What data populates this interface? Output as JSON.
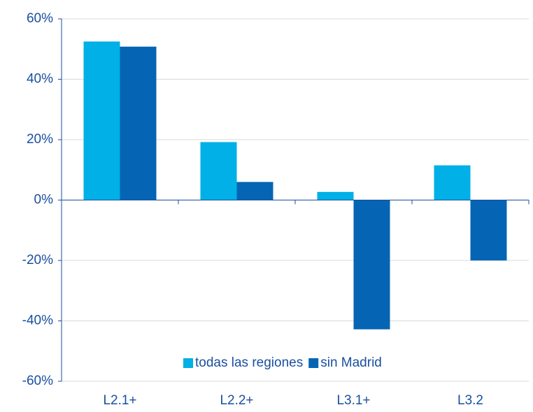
{
  "chart_data": {
    "type": "bar",
    "categories": [
      "L2.1+",
      "L2.2+",
      "L3.1+",
      "L3.2"
    ],
    "series": [
      {
        "name": "todas las regiones",
        "color": "#00b0e6",
        "values": [
          52.5,
          19.2,
          2.7,
          11.5
        ]
      },
      {
        "name": "sin Madrid",
        "color": "#0565b4",
        "values": [
          50.8,
          6,
          -42.8,
          -20
        ]
      }
    ],
    "ylim": [
      -60,
      60
    ],
    "yticks": [
      {
        "value": -60,
        "label": "-60%"
      },
      {
        "value": -40,
        "label": "-40%"
      },
      {
        "value": -20,
        "label": "-20%"
      },
      {
        "value": 0,
        "label": "0%"
      },
      {
        "value": 20,
        "label": "20%"
      },
      {
        "value": 40,
        "label": "40%"
      },
      {
        "value": 60,
        "label": "60%"
      }
    ],
    "grid": true,
    "legend": "bottom"
  }
}
